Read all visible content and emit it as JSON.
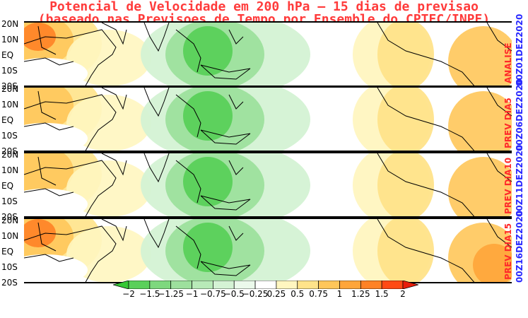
{
  "title": {
    "line1": "Potencial de Velocidade em 200 hPa – 15 dias de previsao",
    "line2": "(baseado nas Previsoes de Tempo por Ensemble do CPTEC/INPE)"
  },
  "lat_labels": [
    "20N",
    "10N",
    "EQ",
    "10S",
    "20S"
  ],
  "panels": [
    {
      "type_label": "ANALISE",
      "date_label": "00Z01DEZ2020"
    },
    {
      "type_label": "PREV DIA5",
      "date_label": "00Z06DEZ2020"
    },
    {
      "type_label": "PREV DIA10",
      "date_label": "00Z11DEZ2020"
    },
    {
      "type_label": "PREV DIA15",
      "date_label": "00Z16DEZ2020"
    }
  ],
  "colorbar": {
    "labels": [
      "−2",
      "−1.5",
      "−1.25",
      "−1",
      "−0.75",
      "−0.5",
      "−0.25",
      "0.25",
      "0.5",
      "0.75",
      "1",
      "1.25",
      "1.5",
      "2"
    ],
    "colors": [
      "#36c836",
      "#5ad05a",
      "#7ed87e",
      "#9de09d",
      "#b8eab8",
      "#d4f2d4",
      "#ebf9eb",
      "#ffffff",
      "#fff6c0",
      "#ffe38a",
      "#ffc65a",
      "#ffa53a",
      "#ff8226",
      "#ff4a14",
      "#e81e0a"
    ]
  }
}
